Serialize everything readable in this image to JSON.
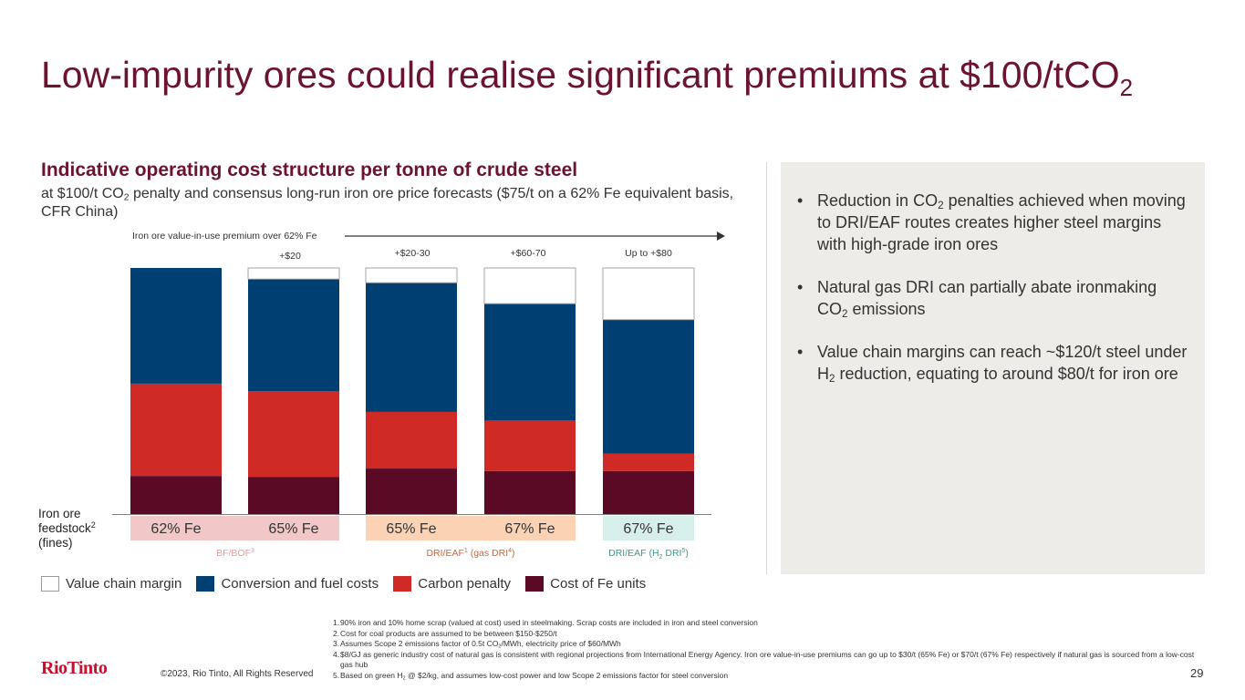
{
  "header": {
    "title": "Low-impurity ores could realise significant premiums at $100/tCO",
    "title_sub": "2"
  },
  "chart_header": {
    "title": "Indicative operating cost structure per tonne of crude steel",
    "subtitle_a": "at $100/t CO",
    "subtitle_sub": "2",
    "subtitle_b": " penalty and consensus long-run iron ore price forecasts ($75/t on a 62% Fe equivalent basis, CFR China)"
  },
  "colors": {
    "value_chain_margin": "#ffffff",
    "conversion_and_fuel": "#003f72",
    "carbon_penalty": "#d02a26",
    "cost_of_fe_units": "#5a0a24",
    "route_bf": "#f2c7c7",
    "route_gas": "#fbd3b4",
    "route_h2": "#d6efea"
  },
  "chart_data": {
    "type": "bar",
    "stacked": true,
    "title": "Indicative operating cost structure per tonne of crude steel",
    "categories": [
      "62% Fe",
      "65% Fe",
      "65% Fe",
      "67% Fe",
      "67% Fe"
    ],
    "series": [
      {
        "name": "Cost of Fe units",
        "values": [
          15.5,
          15.0,
          18.5,
          17.5,
          17.5
        ]
      },
      {
        "name": "Carbon penalty",
        "values": [
          37.5,
          35.0,
          23.0,
          20.5,
          7.0
        ]
      },
      {
        "name": "Conversion and fuel costs",
        "values": [
          47.0,
          45.5,
          52.5,
          47.5,
          54.5
        ]
      },
      {
        "name": "Value chain margin",
        "values": [
          0,
          4.5,
          6.0,
          14.5,
          21.0
        ]
      }
    ],
    "ylim": [
      0,
      100
    ],
    "xlabel": "",
    "ylabel": "",
    "premium_axis_label": "Iron ore value-in-use premium over 62% Fe",
    "premium_labels": [
      "",
      "+$20",
      "+$20-30",
      "+$60-70",
      "Up to +$80"
    ],
    "feedstock_label_lines": [
      "Iron ore",
      "feedstock",
      "(fines)"
    ],
    "feedstock_label_sup": "2",
    "routes": [
      {
        "label": "BF/BOF",
        "sup": "3",
        "bars": [
          0,
          1
        ]
      },
      {
        "label": "DRI/EAF",
        "sup": "1",
        "label_tail": " (gas DRI",
        "sup2": "4",
        "end": ")",
        "bars": [
          2,
          3
        ]
      },
      {
        "label": "DRI/EAF (H",
        "sub": "2",
        "label_tail": " DRI",
        "sup2": "5",
        "end": ")",
        "bars": [
          4
        ]
      }
    ]
  },
  "side_panel": {
    "bullets": [
      {
        "a": "Reduction in CO",
        "sub": "2",
        "b": " penalties achieved when moving to DRI/EAF routes creates higher steel margins with high-grade iron ores"
      },
      {
        "a": "Natural gas DRI can partially abate ironmaking CO",
        "sub": "2",
        "b": " emissions"
      },
      {
        "a": "Value chain margins can reach ~$120/t steel under H",
        "sub": "2",
        "b": " reduction, equating to around $80/t for iron ore"
      }
    ],
    "bullet_char": "•"
  },
  "legend": [
    {
      "label": "Value chain margin",
      "color_key": "value_chain_margin"
    },
    {
      "label": "Conversion and fuel costs",
      "color_key": "conversion_and_fuel"
    },
    {
      "label": "Carbon penalty",
      "color_key": "carbon_penalty"
    },
    {
      "label": "Cost of Fe units",
      "color_key": "cost_of_fe_units"
    }
  ],
  "footnotes": [
    {
      "num": "1.",
      "text": "90% iron and 10% home scrap (valued at cost) used in steelmaking. Scrap costs are included in iron and steel conversion"
    },
    {
      "num": "2.",
      "text": "Cost for coal products are assumed to be between $150-$250/t"
    },
    {
      "num": "3.",
      "text_a": "Assumes Scope 2 emissions factor of 0.5t CO",
      "sub": "2",
      "text_b": "/MWh, electricity price of $60/MWh"
    },
    {
      "num": "4.",
      "text": "$8/GJ as generic industry cost of natural gas is consistent with regional projections from International Energy Agency. Iron ore value-in-use premiums can go up to $30/t (65% Fe) or $70/t (67% Fe) respectively if natural gas is sourced from a low-cost gas hub"
    },
    {
      "num": "5.",
      "text_a": "Based on green H",
      "sub": "2",
      "text_b": " @ $2/kg, and assumes low-cost power and low Scope 2 emissions factor for steel conversion"
    }
  ],
  "footer": {
    "logo": "RioTinto",
    "copyright": "©2023, Rio Tinto, All Rights Reserved",
    "page_number": "29"
  }
}
